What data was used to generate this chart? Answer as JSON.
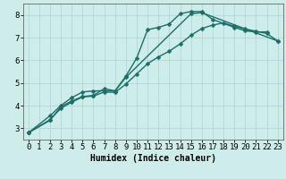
{
  "xlabel": "Humidex (Indice chaleur)",
  "ylabel": "",
  "background_color": "#ceecea",
  "grid_color": "#aed8d4",
  "line_color": "#1a7068",
  "xlim": [
    -0.5,
    23.5
  ],
  "ylim": [
    2.5,
    8.5
  ],
  "yticks": [
    3,
    4,
    5,
    6,
    7,
    8
  ],
  "xticks": [
    0,
    1,
    2,
    3,
    4,
    5,
    6,
    7,
    8,
    9,
    10,
    11,
    12,
    13,
    14,
    15,
    16,
    17,
    18,
    19,
    20,
    21,
    22,
    23
  ],
  "line1_x": [
    0,
    2,
    3,
    4,
    5,
    6,
    7,
    8,
    9,
    10,
    11,
    12,
    13,
    14,
    15,
    16,
    17,
    19,
    20,
    21,
    22
  ],
  "line1_y": [
    2.8,
    3.55,
    4.0,
    4.35,
    4.6,
    4.65,
    4.65,
    4.65,
    5.3,
    6.1,
    7.35,
    7.45,
    7.6,
    8.05,
    8.15,
    8.15,
    7.8,
    7.45,
    7.3,
    7.25,
    7.25
  ],
  "line2_x": [
    0,
    2,
    3,
    4,
    5,
    6,
    7,
    8,
    9,
    15,
    16,
    23
  ],
  "line2_y": [
    2.8,
    3.35,
    3.95,
    4.2,
    4.4,
    4.45,
    4.75,
    4.65,
    5.25,
    8.05,
    8.1,
    6.85
  ],
  "line3_x": [
    0,
    2,
    3,
    4,
    5,
    6,
    7,
    8,
    9,
    10,
    11,
    12,
    13,
    14,
    15,
    16,
    17,
    18,
    19,
    20,
    21,
    22,
    23
  ],
  "line3_y": [
    2.8,
    3.38,
    3.88,
    4.15,
    4.38,
    4.42,
    4.6,
    4.58,
    4.95,
    5.4,
    5.85,
    6.15,
    6.4,
    6.72,
    7.1,
    7.4,
    7.55,
    7.65,
    7.5,
    7.38,
    7.28,
    7.18,
    6.85
  ],
  "marker_size": 2.5,
  "linewidth": 1.0,
  "xlabel_fontsize": 7,
  "tick_fontsize": 6.5
}
